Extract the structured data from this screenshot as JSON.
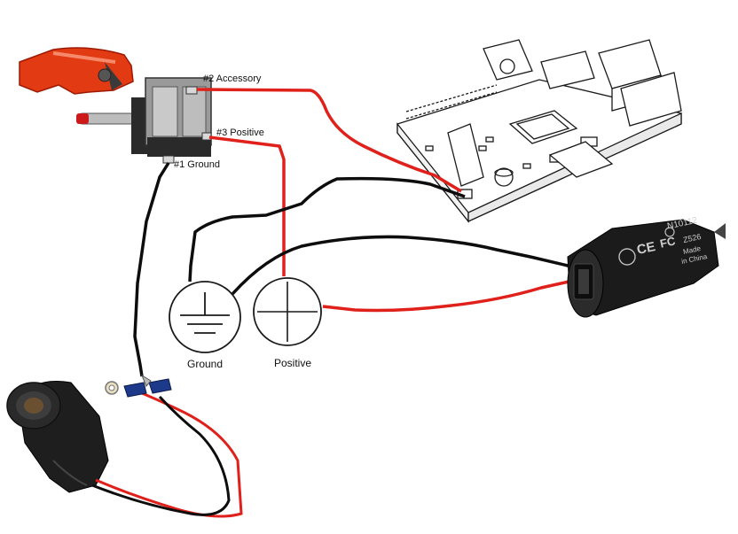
{
  "colors": {
    "wire_positive": "#e0201a",
    "wire_ground": "#0d0d0d",
    "switch_cover": "#e23a12",
    "component_outline": "#1a1a1a",
    "device_body": "#1b1b1b",
    "background": "#ffffff"
  },
  "switch": {
    "terminal_accessory_label": "#2 Accessory",
    "terminal_positive_label": "#3 Positive",
    "terminal_ground_label": "#1 Ground",
    "icon": "toggle-switch-icon"
  },
  "nodes": {
    "ground_label": "Ground",
    "positive_label": "Positive",
    "ground_icon": "ground-symbol-icon",
    "positive_icon": "plus-symbol-icon"
  },
  "board": {
    "icon": "raspberry-pi-board-icon"
  },
  "usb_adapter": {
    "icon": "usb-car-charger-icon",
    "model_text": "N10112",
    "part_text": "Z526",
    "origin_line1": "Made",
    "origin_line2": "in China",
    "mark_ce": "CE",
    "mark_fc": "FC"
  },
  "socket": {
    "icon": "cigarette-lighter-socket-icon"
  }
}
